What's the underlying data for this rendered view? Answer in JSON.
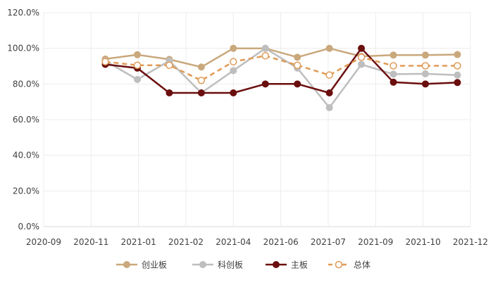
{
  "chart_data": {
    "type": "line",
    "title": "",
    "xlabel": "",
    "ylabel": "",
    "x_ticks": [
      "2020-09",
      "2020-11",
      "2021-01",
      "2021-02",
      "2021-04",
      "2021-06",
      "2021-07",
      "2021-09",
      "2021-10",
      "2021-12"
    ],
    "x_points": [
      "2020-11",
      "2020-12",
      "2021-01",
      "2021-02",
      "2021-03",
      "2021-04",
      "2021-05",
      "2021-06",
      "2021-07",
      "2021-08",
      "2021-09",
      "2021-10"
    ],
    "y_ticks": [
      "0.0%",
      "20.0%",
      "40.0%",
      "60.0%",
      "80.0%",
      "100.0%",
      "120.0%"
    ],
    "ylim": [
      0,
      120
    ],
    "grid": true,
    "legend_position": "bottom",
    "series": [
      {
        "name": "创业板",
        "color": "#C9A87C",
        "dashed": false,
        "marker": "filled",
        "values": [
          94.0,
          96.4,
          93.8,
          89.5,
          100.0,
          100.0,
          95.0,
          100.0,
          95.5,
          96.2,
          96.2,
          96.5
        ]
      },
      {
        "name": "科创板",
        "color": "#BEBEBE",
        "dashed": false,
        "marker": "filled",
        "values": [
          93.0,
          82.5,
          93.0,
          75.0,
          87.5,
          100.0,
          88.9,
          66.7,
          91.0,
          85.5,
          85.7,
          85.0
        ]
      },
      {
        "name": "主板",
        "color": "#6B0E0E",
        "dashed": false,
        "marker": "filled",
        "values": [
          91.0,
          88.9,
          75.0,
          75.0,
          75.0,
          80.0,
          80.0,
          75.0,
          100.0,
          81.0,
          80.0,
          80.8
        ]
      },
      {
        "name": "总体",
        "color": "#E09A55",
        "dashed": true,
        "marker": "hollow",
        "values": [
          92.5,
          90.5,
          90.5,
          82.0,
          92.5,
          95.8,
          90.5,
          85.0,
          95.0,
          90.2,
          90.2,
          90.2
        ]
      }
    ]
  }
}
